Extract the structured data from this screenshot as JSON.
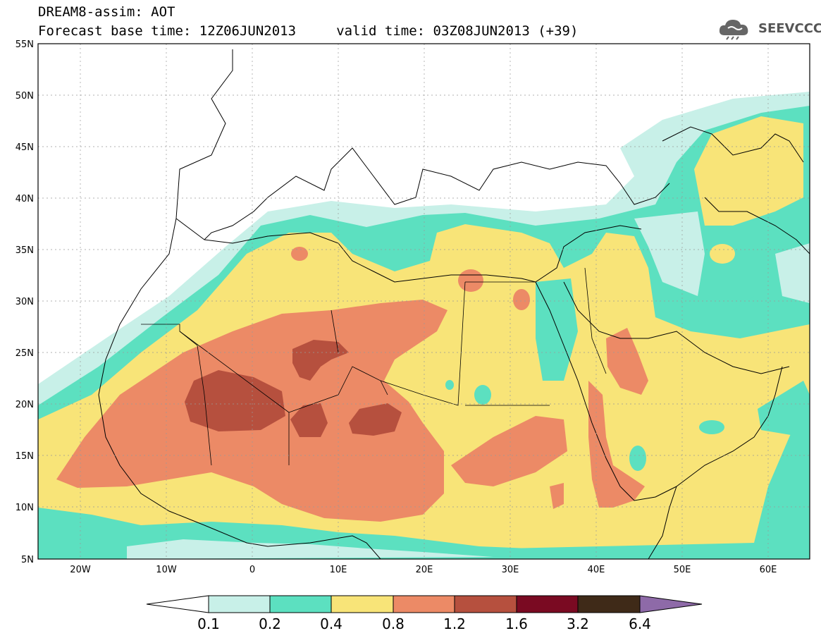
{
  "header": {
    "title_line1": "DREAM8-assim: AOT",
    "title_line2": "Forecast base time: 12Z06JUN2013     valid time: 03Z08JUN2013 (+39)",
    "logo_text": "SEEVCCC"
  },
  "map": {
    "lon_range": [
      -25,
      65
    ],
    "lat_range": [
      5,
      55
    ],
    "lat_labels": [
      "55N",
      "50N",
      "45N",
      "40N",
      "35N",
      "30N",
      "25N",
      "20N",
      "15N",
      "10N",
      "5N"
    ],
    "lon_labels": [
      "20W",
      "10W",
      "0",
      "10E",
      "20E",
      "30E",
      "40E",
      "50E",
      "60E"
    ]
  },
  "colorbar": {
    "labels": [
      "0.1",
      "0.2",
      "0.4",
      "0.8",
      "1.2",
      "1.6",
      "3.2",
      "6.4"
    ],
    "colors": [
      "#ffffff",
      "#c8f0e8",
      "#5ce0c0",
      "#f8e478",
      "#ec8a66",
      "#b6503e",
      "#7a0a22",
      "#3f2a18",
      "#8e6aa8"
    ]
  },
  "icons": {
    "logo": "cloud-icon"
  }
}
